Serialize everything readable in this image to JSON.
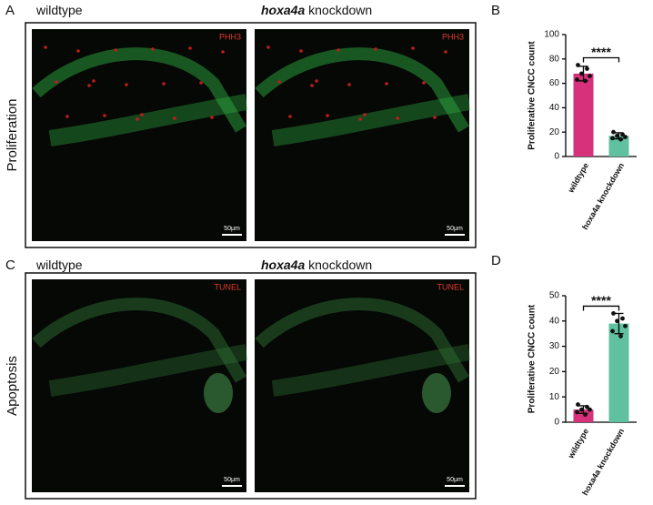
{
  "panels": [
    {
      "letter": "A",
      "row_label": "Proliferation",
      "images": [
        {
          "title": "wildtype",
          "stain": "PHH3",
          "scale": "50μm"
        },
        {
          "gene": "hoxa4a",
          "title": "knockdown",
          "stain": "PHH3",
          "scale": "50μm"
        }
      ]
    },
    {
      "letter": "C",
      "row_label": "Apoptosis",
      "images": [
        {
          "title": "wildtype",
          "stain": "TUNEL",
          "scale": "50μm"
        },
        {
          "gene": "hoxa4a",
          "title": "knockdown",
          "stain": "TUNEL",
          "scale": "50μm"
        }
      ]
    }
  ],
  "chart_data": [
    {
      "type": "bar",
      "panel": "B",
      "ylabel": "Proliferative CNCC count",
      "categories": [
        "wildtype",
        "hoxa4a knockdown"
      ],
      "colors": [
        "#d6317a",
        "#5fc1a0"
      ],
      "values": [
        68,
        17
      ],
      "errors": [
        6,
        2.5
      ],
      "points": [
        [
          75,
          72,
          68,
          66,
          63,
          62
        ],
        [
          20,
          18,
          17,
          16,
          15,
          14
        ]
      ],
      "significance": "****",
      "ylim": [
        0,
        100
      ],
      "yticks": [
        0,
        20,
        40,
        60,
        80,
        100
      ]
    },
    {
      "type": "bar",
      "panel": "D",
      "ylabel": "Proliferative CNCC count",
      "categories": [
        "wildtype",
        "hoxa4a knockdown"
      ],
      "colors": [
        "#d6317a",
        "#5fc1a0"
      ],
      "values": [
        5,
        39
      ],
      "errors": [
        1.5,
        4
      ],
      "points": [
        [
          7,
          6,
          5,
          5,
          4,
          3
        ],
        [
          43,
          41,
          40,
          38,
          36,
          34
        ]
      ],
      "significance": "****",
      "ylim": [
        0,
        50
      ],
      "yticks": [
        0,
        10,
        20,
        30,
        40,
        50
      ]
    }
  ]
}
